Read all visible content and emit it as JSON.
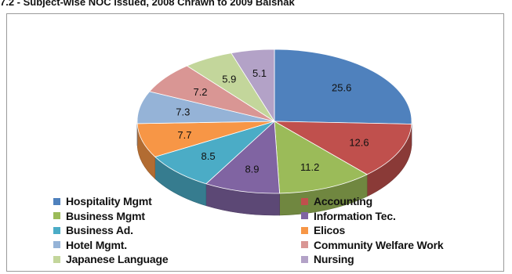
{
  "heading": "7.2 - Subject-wise NOC issued, 2008 Chrawn to 2009 Baishak",
  "chart_data": {
    "type": "pie",
    "title": "",
    "slices": [
      {
        "label": "Hospitality Mgmt",
        "value": 25.6,
        "color": "#4f81bd"
      },
      {
        "label": "Accounting",
        "value": 12.6,
        "color": "#c0504d"
      },
      {
        "label": "Business Mgmt",
        "value": 11.2,
        "color": "#9bbb59"
      },
      {
        "label": "Information Tec.",
        "value": 8.9,
        "color": "#8064a2"
      },
      {
        "label": "Business Ad.",
        "value": 8.5,
        "color": "#4bacc6"
      },
      {
        "label": "Elicos",
        "value": 7.7,
        "color": "#f79646"
      },
      {
        "label": "Hotel Mgmt.",
        "value": 7.3,
        "color": "#95b3d7"
      },
      {
        "label": "Community Welfare Work",
        "value": 7.2,
        "color": "#d99694"
      },
      {
        "label": "Japanese Language",
        "value": 5.9,
        "color": "#c3d69b"
      },
      {
        "label": "Nursing",
        "value": 5.1,
        "color": "#b3a2c7"
      }
    ],
    "style": "3d-pie",
    "legend_position": "bottom"
  }
}
